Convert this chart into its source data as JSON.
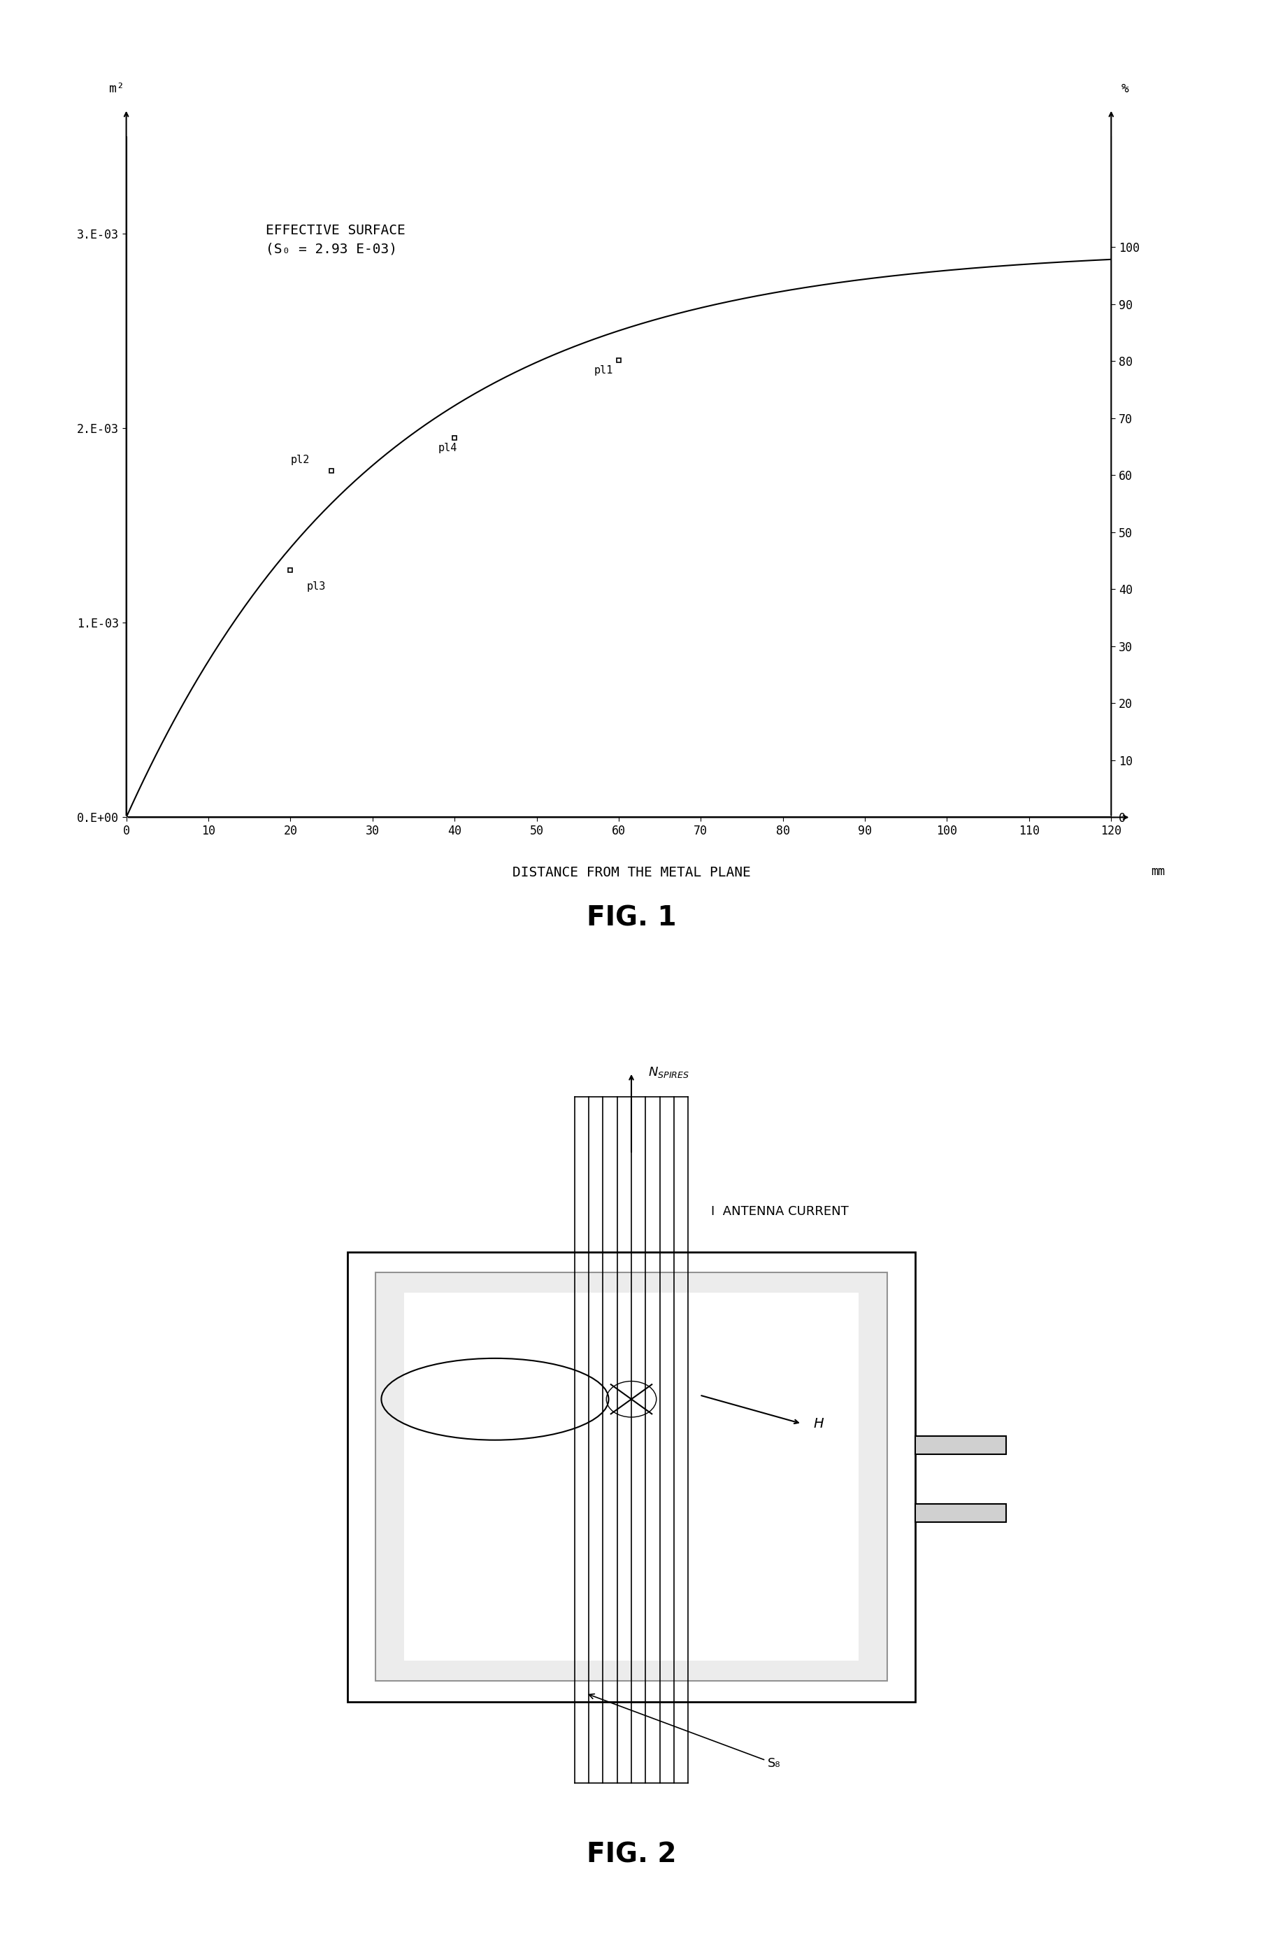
{
  "fig1": {
    "title": "DISTANCE FROM THE METAL PLANE",
    "fig_label": "FIG. 1",
    "xlabel_unit": "mm",
    "ylabel_left_unit": "m²",
    "ylabel_right_unit": "%",
    "xlim": [
      0,
      120
    ],
    "ylim_left": [
      0,
      0.0035
    ],
    "ylim_right": [
      0,
      116.7
    ],
    "xticks": [
      0,
      10,
      20,
      30,
      40,
      50,
      60,
      70,
      80,
      90,
      100,
      110,
      120
    ],
    "yticks_left": [
      0.0,
      0.001,
      0.002,
      0.003
    ],
    "ytick_labels_left": [
      "0.E+00",
      "1.E-03",
      "2.E-03",
      "3.E-03"
    ],
    "yticks_right": [
      0,
      10,
      20,
      30,
      40,
      50,
      60,
      70,
      80,
      90,
      100
    ],
    "annotation_text": "EFFECTIVE SURFACE\n(S₀ = 2.93 E-03)",
    "S0": 0.00293,
    "points": {
      "pl1": [
        60,
        0.00235
      ],
      "pl2": [
        25,
        0.00178
      ],
      "pl3": [
        20,
        0.00127
      ],
      "pl4": [
        40,
        0.00195
      ]
    }
  },
  "fig2": {
    "fig_label": "FIG. 2",
    "label_nspires": "NₛPIRES",
    "label_current": "I  ANTENNA CURRENT",
    "label_h": "H",
    "label_s8": "S₈"
  }
}
